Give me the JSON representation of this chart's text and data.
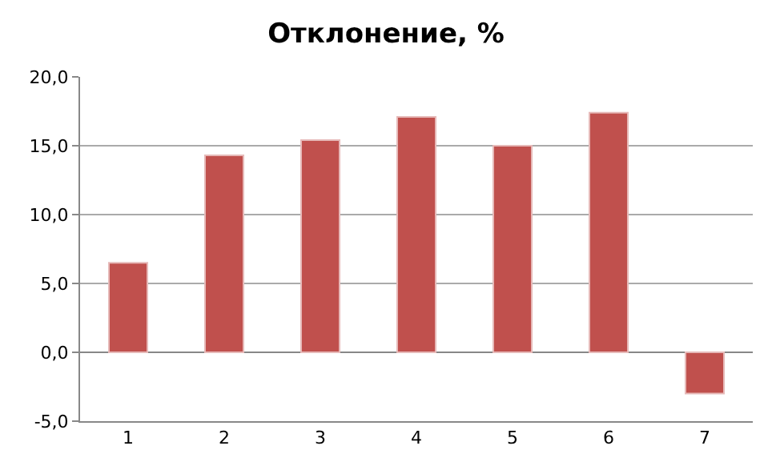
{
  "chart_data": {
    "type": "bar",
    "title": "Отклонение, %",
    "categories": [
      "1",
      "2",
      "3",
      "4",
      "5",
      "6",
      "7"
    ],
    "values": [
      6.5,
      14.3,
      15.4,
      17.1,
      15.0,
      17.4,
      -3.0
    ],
    "color": "#c0504d",
    "ylim": [
      -5,
      20
    ],
    "yticks": [
      {
        "value": -5,
        "label": "-5,0"
      },
      {
        "value": 0,
        "label": "0,0"
      },
      {
        "value": 5,
        "label": "5,0"
      },
      {
        "value": 10,
        "label": "10,0"
      },
      {
        "value": 15,
        "label": "15,0"
      },
      {
        "value": 20,
        "label": "20,0"
      }
    ],
    "grid": "y"
  }
}
